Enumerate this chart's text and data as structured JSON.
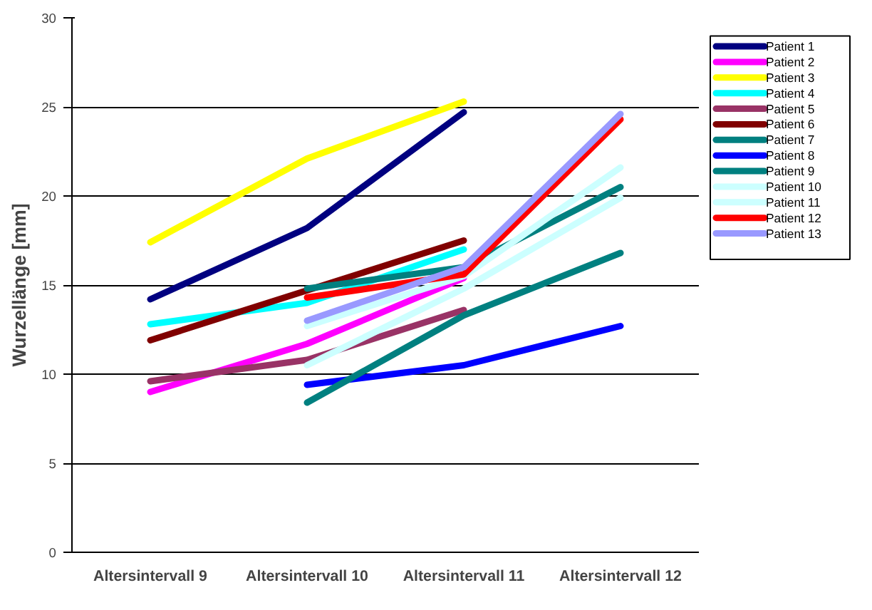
{
  "chart_data": {
    "type": "line",
    "ylabel": "Wurzellänge [mm]",
    "categories": [
      "Altersintervall 9",
      "Altersintervall 10",
      "Altersintervall 11",
      "Altersintervall 12"
    ],
    "ylim": [
      0,
      30
    ],
    "yticks": [
      0,
      5,
      10,
      15,
      20,
      25,
      30
    ],
    "grid": "y",
    "legend": "right",
    "line_style": "solid",
    "marker": "none",
    "series": [
      {
        "name": "Patient 1",
        "color": "#000080",
        "values": [
          14.2,
          18.2,
          24.7,
          null
        ]
      },
      {
        "name": "Patient 2",
        "color": "#ff00ff",
        "values": [
          9.0,
          11.7,
          15.4,
          null
        ]
      },
      {
        "name": "Patient 3",
        "color": "#ffff00",
        "values": [
          17.4,
          22.1,
          25.3,
          null
        ]
      },
      {
        "name": "Patient 4",
        "color": "#00ffff",
        "values": [
          12.8,
          14.0,
          17.0,
          null
        ]
      },
      {
        "name": "Patient 5",
        "color": "#993366",
        "values": [
          9.6,
          10.8,
          13.6,
          null
        ]
      },
      {
        "name": "Patient 6",
        "color": "#800000",
        "values": [
          11.9,
          14.7,
          17.5,
          null
        ]
      },
      {
        "name": "Patient 7",
        "color": "#008080",
        "values": [
          null,
          14.8,
          16.0,
          20.5
        ]
      },
      {
        "name": "Patient 8",
        "color": "#0000ff",
        "values": [
          null,
          9.4,
          10.5,
          12.7
        ]
      },
      {
        "name": "Patient 9",
        "color": "#008080",
        "values": [
          null,
          8.4,
          13.3,
          16.8
        ]
      },
      {
        "name": "Patient 10",
        "color": "#ccffff",
        "values": [
          null,
          12.7,
          15.5,
          21.6
        ]
      },
      {
        "name": "Patient 11",
        "color": "#ccffff",
        "values": [
          null,
          10.5,
          14.8,
          19.9
        ]
      },
      {
        "name": "Patient 12",
        "color": "#ff0000",
        "values": [
          null,
          14.3,
          15.6,
          24.3
        ]
      },
      {
        "name": "Patient 13",
        "color": "#9999ff",
        "values": [
          null,
          13.0,
          16.0,
          24.6
        ]
      }
    ]
  }
}
